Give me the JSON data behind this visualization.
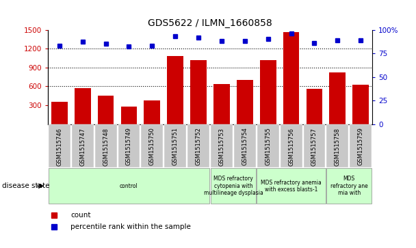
{
  "title": "GDS5622 / ILMN_1660858",
  "samples": [
    "GSM1515746",
    "GSM1515747",
    "GSM1515748",
    "GSM1515749",
    "GSM1515750",
    "GSM1515751",
    "GSM1515752",
    "GSM1515753",
    "GSM1515754",
    "GSM1515755",
    "GSM1515756",
    "GSM1515757",
    "GSM1515758",
    "GSM1515759"
  ],
  "counts": [
    350,
    570,
    450,
    280,
    370,
    1080,
    1020,
    640,
    700,
    1020,
    1460,
    560,
    820,
    620
  ],
  "percentile_ranks": [
    83,
    87,
    85,
    82,
    83,
    93,
    92,
    88,
    88,
    90,
    96,
    86,
    89,
    89
  ],
  "ylim_left": [
    0,
    1500
  ],
  "ylim_right": [
    0,
    100
  ],
  "yticks_left": [
    300,
    600,
    900,
    1200,
    1500
  ],
  "yticks_right": [
    0,
    25,
    50,
    75,
    100
  ],
  "bar_color": "#cc0000",
  "dot_color": "#0000cc",
  "xticklabel_bg": "#c8c8c8",
  "disease_groups": [
    {
      "label": "control",
      "start": 0,
      "end": 7,
      "color": "#ccffcc"
    },
    {
      "label": "MDS refractory\ncytopenia with\nmultilineage dysplasia",
      "start": 7,
      "end": 9,
      "color": "#ccffcc"
    },
    {
      "label": "MDS refractory anemia\nwith excess blasts-1",
      "start": 9,
      "end": 12,
      "color": "#ccffcc"
    },
    {
      "label": "MDS\nrefractory ane\nmia with",
      "start": 12,
      "end": 14,
      "color": "#ccffcc"
    }
  ],
  "legend_count_label": "count",
  "legend_pct_label": "percentile rank within the sample",
  "disease_state_label": "disease state"
}
